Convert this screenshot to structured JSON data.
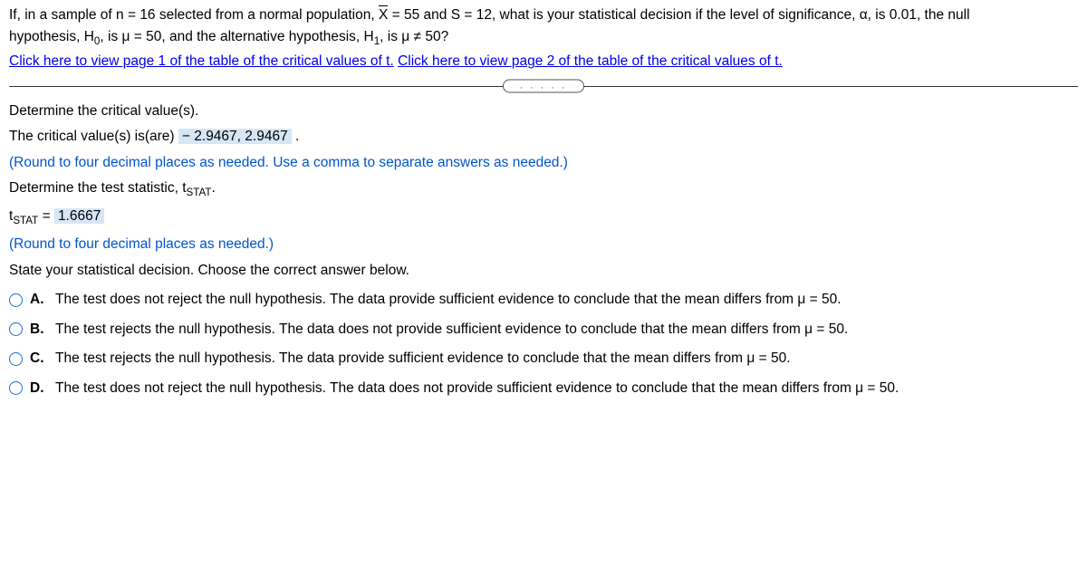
{
  "stem": {
    "l1a": "If, in a sample of n = 16 selected from a normal population, ",
    "l1b": " = 55 and S = 12, what is your statistical decision if the level of significance, α, is 0.01, the null",
    "l2a": "hypothesis, H",
    "l2b": ", is μ = 50, and the alternative hypothesis, H",
    "l2c": ", is μ ≠ 50?",
    "sub0": "0",
    "sub1": "1",
    "xbar": "X"
  },
  "links": {
    "p1": "Click here to view page 1 of the table of the critical values of t.",
    "p2": "Click here to view page 2 of the table of the critical values of t."
  },
  "divider_dots": ". . . . .",
  "q1": {
    "prompt": "Determine the critical value(s).",
    "lead": "The critical value(s) is(are)  ",
    "answer": "− 2.9467, 2.9467",
    "tail": " .",
    "hint": "(Round to four decimal places as needed. Use a comma to separate answers as needed.)"
  },
  "q2": {
    "prompt_a": "Determine the test statistic, t",
    "prompt_b": ".",
    "sub": "STAT",
    "lhs_a": "t",
    "lhs_b": " = ",
    "answer": "1.6667",
    "hint": "(Round to four decimal places as needed.)"
  },
  "q3": {
    "prompt": "State your statistical decision. Choose the correct answer below."
  },
  "options": [
    {
      "letter": "A.",
      "text": "The test does not reject the null hypothesis. The data provide sufficient evidence to conclude that the mean differs from μ = 50."
    },
    {
      "letter": "B.",
      "text": "The test rejects the null hypothesis. The data does not provide sufficient evidence to conclude that the mean differs from μ = 50."
    },
    {
      "letter": "C.",
      "text": "The test rejects the null hypothesis. The data provide sufficient evidence to conclude that the mean differs from μ = 50."
    },
    {
      "letter": "D.",
      "text": "The test does not reject the null hypothesis. The data does not provide sufficient evidence to conclude that the mean differs from μ = 50."
    }
  ],
  "style": {
    "link_color": "#0000ee",
    "hint_color": "#0055cc",
    "answer_bg": "#d6e6f5",
    "radio_border": "#1a6fd6"
  }
}
